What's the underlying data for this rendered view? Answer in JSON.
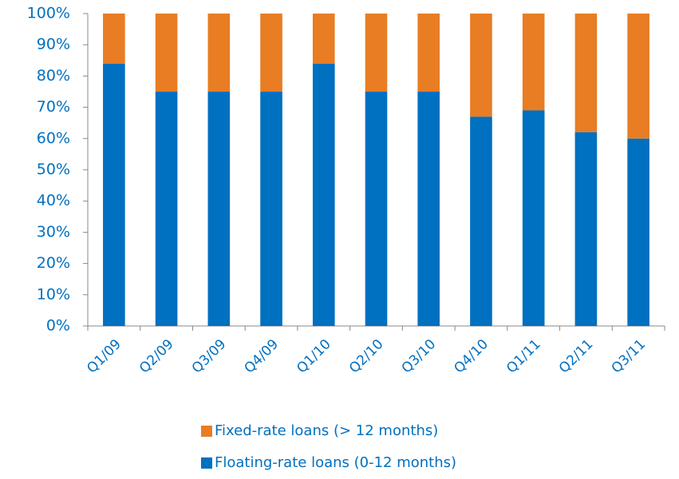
{
  "chart_data": {
    "type": "stacked_bar",
    "categories": [
      "Q1/09",
      "Q2/09",
      "Q3/09",
      "Q4/09",
      "Q1/10",
      "Q2/10",
      "Q3/10",
      "Q4/10",
      "Q1/11",
      "Q2/11",
      "Q3/11"
    ],
    "series": [
      {
        "name": "Floating-rate loans (0-12 months)",
        "color": "#0070c0",
        "values": [
          84,
          75,
          75,
          75,
          84,
          75,
          75,
          67,
          69,
          62,
          60
        ]
      },
      {
        "name": "Fixed-rate loans (> 12 months)",
        "color": "#e87d23",
        "values": [
          16,
          25,
          25,
          25,
          16,
          25,
          25,
          33,
          31,
          38,
          40
        ]
      }
    ],
    "ylim": [
      0,
      100
    ],
    "yticks": [
      {
        "value": 0,
        "label": "0%"
      },
      {
        "value": 10,
        "label": "10%"
      },
      {
        "value": 20,
        "label": "20%"
      },
      {
        "value": 30,
        "label": "30%"
      },
      {
        "value": 40,
        "label": "40%"
      },
      {
        "value": 50,
        "label": "50%"
      },
      {
        "value": 60,
        "label": "60%"
      },
      {
        "value": 70,
        "label": "70%"
      },
      {
        "value": 80,
        "label": "80%"
      },
      {
        "value": 90,
        "label": "90%"
      },
      {
        "value": 100,
        "label": "100%"
      }
    ],
    "grid": false,
    "legend": "bottom"
  }
}
